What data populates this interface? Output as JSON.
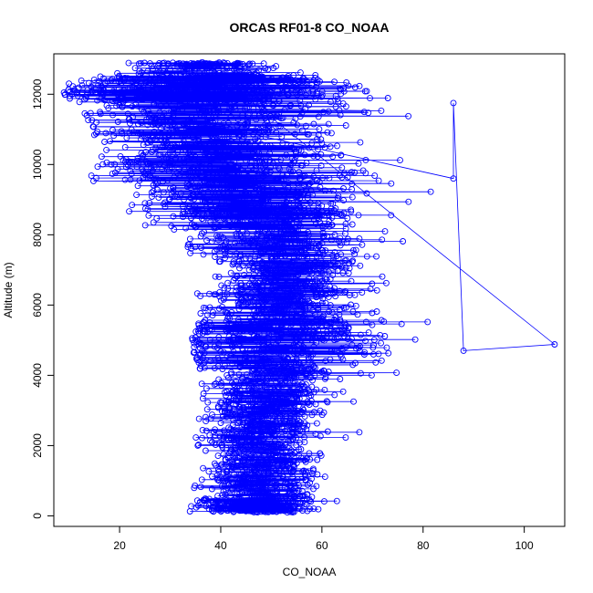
{
  "chart_data": {
    "type": "scatter",
    "title": "ORCAS RF01-8 CO_NOAA",
    "xlabel": "CO_NOAA",
    "ylabel": "Altitude (m)",
    "xlim": [
      7,
      108
    ],
    "ylim": [
      -300,
      13150
    ],
    "x_ticks": [
      20,
      40,
      60,
      80,
      100
    ],
    "y_ticks": [
      0,
      2000,
      4000,
      6000,
      8000,
      10000,
      12000
    ],
    "grid": false,
    "legend": "none",
    "marker": "open-circle-with-lines",
    "series_color": "#0000ff",
    "profile": [
      {
        "altitude": 0,
        "co_min": 34,
        "co_max": 64,
        "co_center": 47
      },
      {
        "altitude": 500,
        "co_min": 33,
        "co_max": 64,
        "co_center": 47
      },
      {
        "altitude": 1000,
        "co_min": 35,
        "co_max": 62,
        "co_center": 48
      },
      {
        "altitude": 2000,
        "co_min": 34,
        "co_max": 68,
        "co_center": 48
      },
      {
        "altitude": 3000,
        "co_min": 36,
        "co_max": 67,
        "co_center": 49
      },
      {
        "altitude": 4000,
        "co_min": 36,
        "co_max": 73,
        "co_center": 50
      },
      {
        "altitude": 4900,
        "co_min": 34,
        "co_max": 106,
        "co_center": 51
      },
      {
        "altitude": 6000,
        "co_min": 36,
        "co_max": 74,
        "co_center": 52
      },
      {
        "altitude": 7000,
        "co_min": 30,
        "co_max": 72,
        "co_center": 53
      },
      {
        "altitude": 8000,
        "co_min": 27,
        "co_max": 78,
        "co_center": 52
      },
      {
        "altitude": 8600,
        "co_min": 19,
        "co_max": 74,
        "co_center": 48
      },
      {
        "altitude": 9500,
        "co_min": 14,
        "co_max": 86,
        "co_center": 42
      },
      {
        "altitude": 10500,
        "co_min": 15,
        "co_max": 78,
        "co_center": 40
      },
      {
        "altitude": 11500,
        "co_min": 13,
        "co_max": 83,
        "co_center": 37
      },
      {
        "altitude": 12000,
        "co_min": 9,
        "co_max": 86,
        "co_center": 35
      },
      {
        "altitude": 12400,
        "co_min": 12,
        "co_max": 76,
        "co_center": 40
      },
      {
        "altitude": 12850,
        "co_min": 20,
        "co_max": 50,
        "co_center": 36
      }
    ],
    "notable_points": [
      {
        "co": 106,
        "altitude": 4880
      },
      {
        "co": 88,
        "altitude": 4700
      },
      {
        "co": 86,
        "altitude": 11750
      },
      {
        "co": 86,
        "altitude": 9600
      },
      {
        "co": 9,
        "altitude": 12050
      },
      {
        "co": 10,
        "altitude": 12300
      }
    ]
  }
}
